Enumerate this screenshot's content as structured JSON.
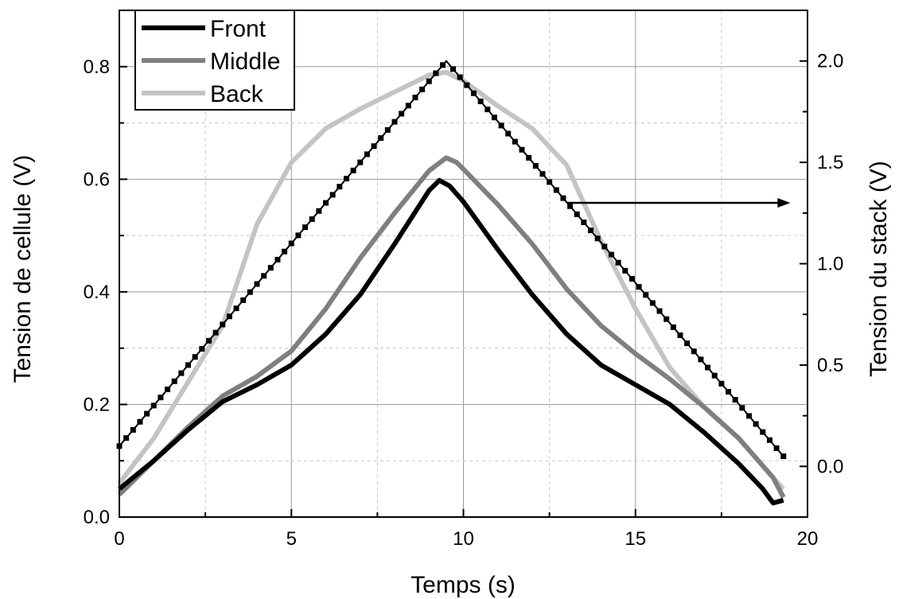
{
  "chart_data": {
    "type": "line",
    "xlabel": "Temps (s)",
    "ylabel_left": "Tension de cellule (V)",
    "ylabel_right": "Tension du stack (V)",
    "xlim": [
      0,
      20
    ],
    "ylim_left": [
      0,
      0.9
    ],
    "ylim_right": [
      -0.25,
      2.25
    ],
    "x_ticks": [
      0,
      5,
      10,
      15,
      20
    ],
    "x_tick_labels": [
      "0",
      "5",
      "10",
      "15",
      "20"
    ],
    "y_left_ticks": [
      0.0,
      0.2,
      0.4,
      0.6,
      0.8
    ],
    "y_left_tick_labels": [
      "0.0",
      "0.2",
      "0.4",
      "0.6",
      "0.8"
    ],
    "y_right_ticks": [
      0.0,
      0.5,
      1.0,
      1.5,
      2.0
    ],
    "y_right_tick_labels": [
      "0.0",
      "0.5",
      "1.0",
      "1.5",
      "2.0"
    ],
    "grid": true,
    "legend": {
      "position": "top-left"
    },
    "series": [
      {
        "name": "Front",
        "axis": "left",
        "color": "#000000",
        "x": [
          0,
          1,
          2,
          3,
          4,
          5,
          6,
          7,
          8,
          9,
          9.3,
          9.6,
          10,
          11,
          12,
          13,
          14,
          15,
          16,
          17,
          18,
          18.7,
          19,
          19.3
        ],
        "y": [
          0.05,
          0.1,
          0.155,
          0.205,
          0.235,
          0.27,
          0.325,
          0.395,
          0.485,
          0.58,
          0.598,
          0.588,
          0.56,
          0.475,
          0.395,
          0.325,
          0.27,
          0.235,
          0.2,
          0.15,
          0.095,
          0.05,
          0.025,
          0.03
        ]
      },
      {
        "name": "Middle",
        "axis": "left",
        "color": "#7f7f7f",
        "x": [
          0,
          1,
          2,
          3,
          4,
          5,
          6,
          7,
          8,
          9,
          9.5,
          9.8,
          10,
          11,
          12,
          13,
          14,
          15,
          16,
          17,
          18,
          19,
          19.3
        ],
        "y": [
          0.04,
          0.1,
          0.16,
          0.215,
          0.25,
          0.295,
          0.37,
          0.46,
          0.54,
          0.615,
          0.638,
          0.63,
          0.618,
          0.555,
          0.485,
          0.405,
          0.34,
          0.29,
          0.245,
          0.195,
          0.14,
          0.07,
          0.035
        ]
      },
      {
        "name": "Back",
        "axis": "left",
        "color": "#c4c4c4",
        "x": [
          0,
          1,
          2,
          3,
          4,
          5,
          6,
          7,
          8,
          9,
          9.5,
          10,
          11,
          12,
          13,
          14,
          15,
          16,
          17,
          18,
          19,
          19.3
        ],
        "y": [
          0.06,
          0.14,
          0.24,
          0.34,
          0.52,
          0.63,
          0.69,
          0.725,
          0.755,
          0.785,
          0.79,
          0.775,
          0.73,
          0.69,
          0.625,
          0.49,
          0.37,
          0.265,
          0.195,
          0.14,
          0.07,
          0.05
        ]
      },
      {
        "name": "",
        "axis": "right",
        "color": "#000000",
        "marker": "square",
        "x": [
          0,
          9.5,
          19.3
        ],
        "y": [
          0.1,
          2.0,
          0.05
        ]
      }
    ],
    "annotations": [
      {
        "type": "arrow",
        "direction": "right",
        "target_axis": "right",
        "from": [
          13.0,
          1.3
        ],
        "to": [
          19.5,
          1.3
        ]
      }
    ]
  }
}
